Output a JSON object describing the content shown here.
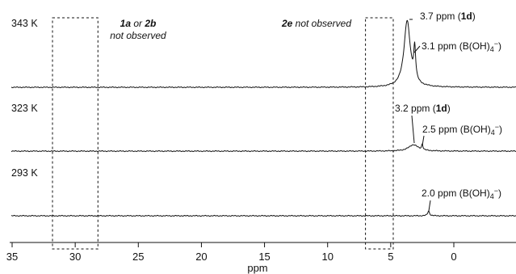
{
  "chart_data": {
    "type": "line",
    "title": "",
    "xlabel": "ppm",
    "ylabel": "",
    "x_reversed": true,
    "xlim": [
      35,
      -5
    ],
    "x_ticks": [
      35,
      30,
      25,
      20,
      15,
      10,
      5,
      0
    ],
    "grid": false,
    "legend": "none",
    "series": [
      {
        "name": "343 K",
        "peaks": [
          {
            "ppm": 3.7,
            "label_value": "3.7 ppm",
            "species": "1d"
          },
          {
            "ppm": 3.1,
            "label_value": "3.1 ppm",
            "species": "B(OH)4−"
          }
        ]
      },
      {
        "name": "323 K",
        "peaks": [
          {
            "ppm": 3.2,
            "label_value": "3.2 ppm",
            "species": "1d"
          },
          {
            "ppm": 2.5,
            "label_value": "2.5 ppm",
            "species": "B(OH)4−"
          }
        ]
      },
      {
        "name": "293 K",
        "peaks": [
          {
            "ppm": 2.0,
            "label_value": "2.0 ppm",
            "species": "B(OH)4−"
          }
        ]
      }
    ],
    "regions": [
      {
        "ppm_range": [
          31.8,
          28.2
        ],
        "note_parts": [
          "1a",
          " or ",
          "2b"
        ],
        "note_line2": "not observed"
      },
      {
        "ppm_range": [
          7.0,
          4.8
        ],
        "note_parts": [
          "2e",
          " not observed"
        ]
      }
    ]
  }
}
